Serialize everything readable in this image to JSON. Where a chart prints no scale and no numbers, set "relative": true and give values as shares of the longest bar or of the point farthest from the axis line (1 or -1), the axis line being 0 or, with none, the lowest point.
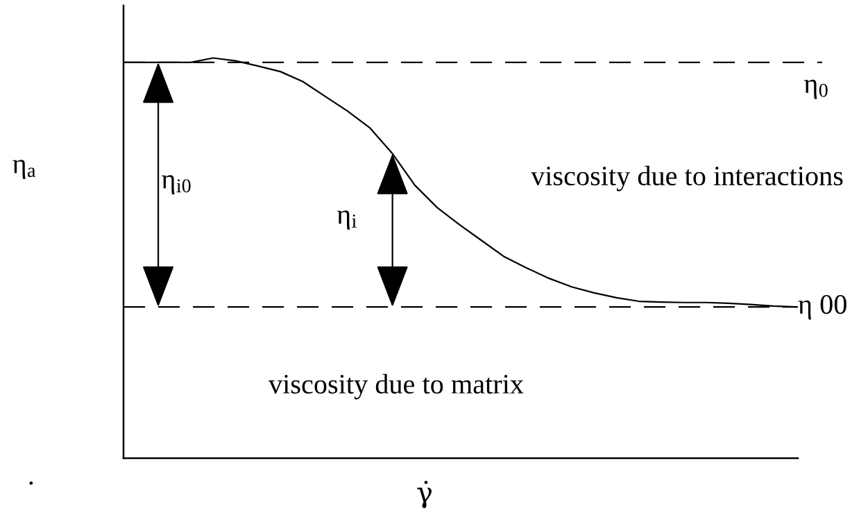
{
  "chart_data": {
    "type": "line",
    "relative": true,
    "xlabel": "γ̇",
    "ylabel": "η$_{a}$",
    "categories": [
      null,
      null,
      null,
      null,
      null,
      null,
      null,
      null,
      null,
      null,
      null,
      null,
      null,
      null,
      null,
      null,
      null,
      null,
      null,
      null,
      null,
      null,
      null,
      null,
      null,
      null,
      null,
      null,
      null,
      null,
      null
    ],
    "series": [
      {
        "color": "#000000",
        "values": [
          0.989,
          0.989,
          0.989,
          0.989,
          1.0,
          0.993,
          0.98,
          0.966,
          0.941,
          0.904,
          0.867,
          0.825,
          0.761,
          0.682,
          0.626,
          0.583,
          0.543,
          0.503,
          0.475,
          0.449,
          0.428,
          0.413,
          0.401,
          0.392,
          0.39,
          0.389,
          0.389,
          0.387,
          0.384,
          0.38,
          0.378
        ]
      }
    ],
    "ref_lines": [
      {
        "axis": "y",
        "value": 0.989,
        "label": "η$_{0}$",
        "color": "#000000",
        "line_style": "dashed"
      },
      {
        "axis": "y",
        "value": 0.378,
        "label": "η 00",
        "color": "#000000",
        "line_style": "dashed"
      }
    ],
    "annotations": [
      "η$_{i0}$",
      "η$_{i}$",
      "viscosity due to interactions",
      "viscosity due to matrix",
      "."
    ],
    "grid": false
  }
}
